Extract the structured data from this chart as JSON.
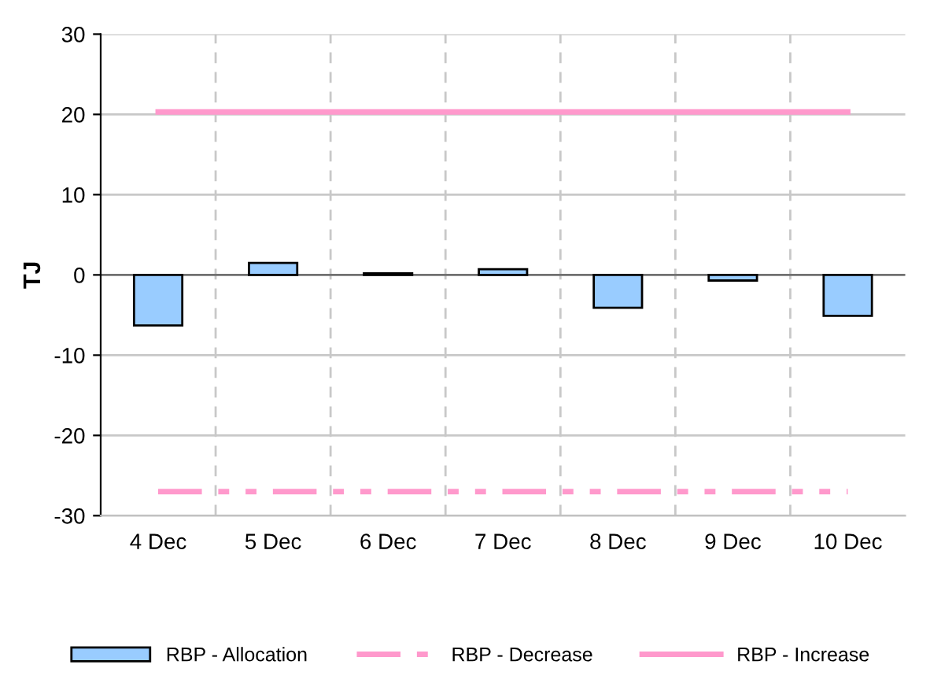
{
  "chart_data": {
    "type": "bar",
    "ylabel": "TJ",
    "categories": [
      "4 Dec",
      "5 Dec",
      "6 Dec",
      "7 Dec",
      "8 Dec",
      "9 Dec",
      "10 Dec"
    ],
    "series": [
      {
        "name": "RBP - Allocation",
        "color": "#99ccff",
        "values": [
          -6.3,
          1.5,
          0.2,
          0.7,
          -4.1,
          -0.7,
          -5.1
        ]
      },
      {
        "name": "RBP - Decrease",
        "type": "line",
        "line_style": "dashdot",
        "color": "#ff99cc",
        "values": [
          -27,
          -27,
          -27,
          -27,
          -27,
          -27,
          -27
        ]
      },
      {
        "name": "RBP - Increase",
        "type": "line",
        "line_style": "solid",
        "color": "#ff99cc",
        "values": [
          20.3,
          20.3,
          20.3,
          20.3,
          20.3,
          20.3,
          20.3
        ]
      }
    ],
    "ylim": [
      -30,
      30
    ],
    "yticks": [
      -30,
      -20,
      -10,
      0,
      10,
      20,
      30
    ],
    "grid": true,
    "legend": "bottom"
  }
}
